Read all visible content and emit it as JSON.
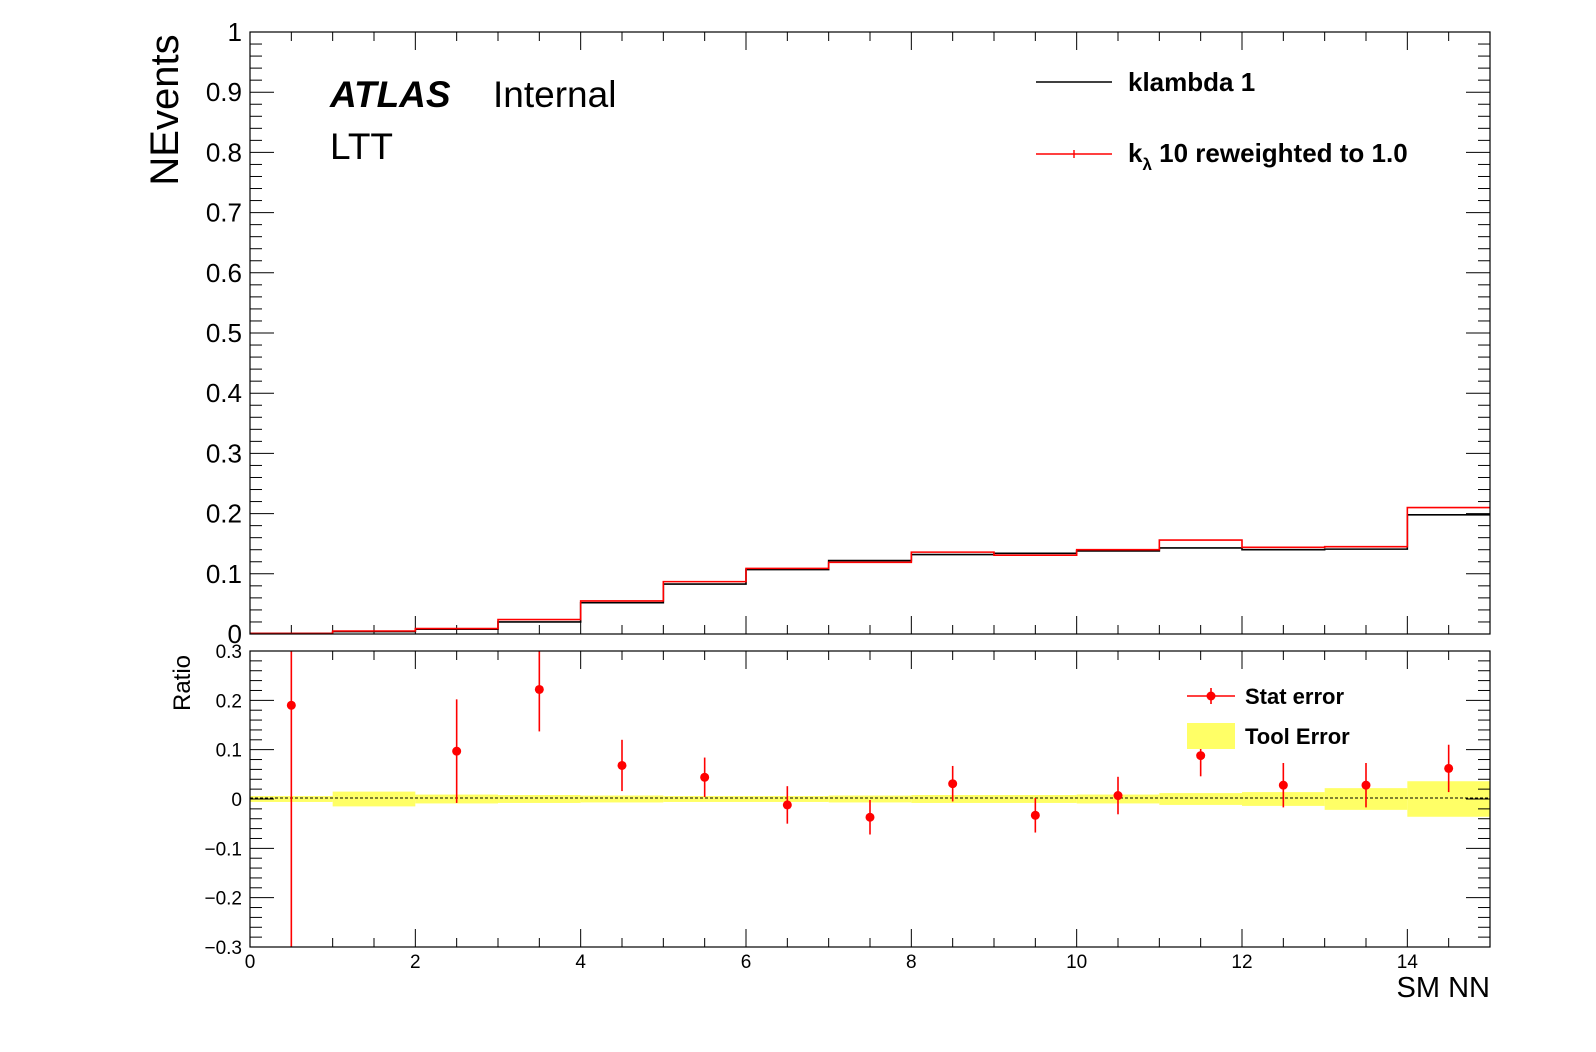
{
  "chart_data": [
    {
      "type": "line",
      "step": true,
      "x_edges": [
        0,
        1,
        2,
        3,
        4,
        5,
        6,
        7,
        8,
        9,
        10,
        11,
        12,
        13,
        14,
        15
      ],
      "xlim": [
        0,
        15
      ],
      "ylim": [
        0,
        1
      ],
      "ylabel": "NEvents",
      "yticks": [
        "0",
        "0.1",
        "0.2",
        "0.3",
        "0.4",
        "0.5",
        "0.6",
        "0.7",
        "0.8",
        "0.9",
        "1"
      ],
      "yticks_values": [
        0,
        0.1,
        0.2,
        0.3,
        0.4,
        0.5,
        0.6,
        0.7,
        0.8,
        0.9,
        1
      ],
      "series": [
        {
          "name": "klambda 1",
          "color": "#000000",
          "values": [
            0.001,
            0.004,
            0.008,
            0.02,
            0.052,
            0.083,
            0.107,
            0.122,
            0.132,
            0.134,
            0.138,
            0.143,
            0.14,
            0.141,
            0.198
          ]
        },
        {
          "name_main": "k",
          "name_sub": "λ",
          "name_rest": " 10 reweighted to 1.0",
          "color": "#ff0000",
          "values": [
            0.001,
            0.005,
            0.009,
            0.024,
            0.055,
            0.087,
            0.109,
            0.119,
            0.136,
            0.131,
            0.14,
            0.156,
            0.144,
            0.145,
            0.21
          ]
        }
      ],
      "annotations": {
        "atlas": "ATLAS",
        "internal": "Internal",
        "region": "LTT"
      }
    },
    {
      "type": "scatter",
      "xlim": [
        0,
        15
      ],
      "ylim": [
        -0.3,
        0.3
      ],
      "ylabel": "Ratio",
      "xlabel": "SM NN",
      "yticks": [
        "−0.3",
        "−0.2",
        "−0.1",
        "0",
        "0.1",
        "0.2",
        "0.3"
      ],
      "yticks_values": [
        -0.3,
        -0.2,
        -0.1,
        0,
        0.1,
        0.2,
        0.3
      ],
      "xticks": [
        "0",
        "2",
        "4",
        "6",
        "8",
        "10",
        "12",
        "14"
      ],
      "xticks_values": [
        0,
        2,
        4,
        6,
        8,
        10,
        12,
        14
      ],
      "series": [
        {
          "name": "Stat error",
          "color": "#ff0000",
          "x": [
            0.5,
            2.5,
            3.5,
            4.5,
            5.5,
            6.5,
            7.5,
            8.5,
            9.5,
            10.5,
            11.5,
            12.5,
            13.5,
            14.5
          ],
          "y": [
            0.19,
            0.097,
            0.222,
            0.068,
            0.044,
            -0.012,
            -0.037,
            0.031,
            -0.033,
            0.007,
            0.088,
            0.028,
            0.028,
            0.062
          ],
          "yerr": [
            0.5,
            0.105,
            0.085,
            0.052,
            0.04,
            0.038,
            0.035,
            0.036,
            0.035,
            0.038,
            0.042,
            0.045,
            0.045,
            0.048
          ]
        },
        {
          "name": "Tool Error",
          "color": "#ffff66",
          "x_edges": [
            0,
            1,
            2,
            3,
            4,
            5,
            6,
            7,
            8,
            9,
            10,
            11,
            12,
            13,
            14,
            15
          ],
          "half_width": [
            0.006,
            0.015,
            0.009,
            0.008,
            0.007,
            0.006,
            0.006,
            0.007,
            0.008,
            0.008,
            0.009,
            0.012,
            0.014,
            0.022,
            0.036
          ]
        }
      ]
    }
  ]
}
